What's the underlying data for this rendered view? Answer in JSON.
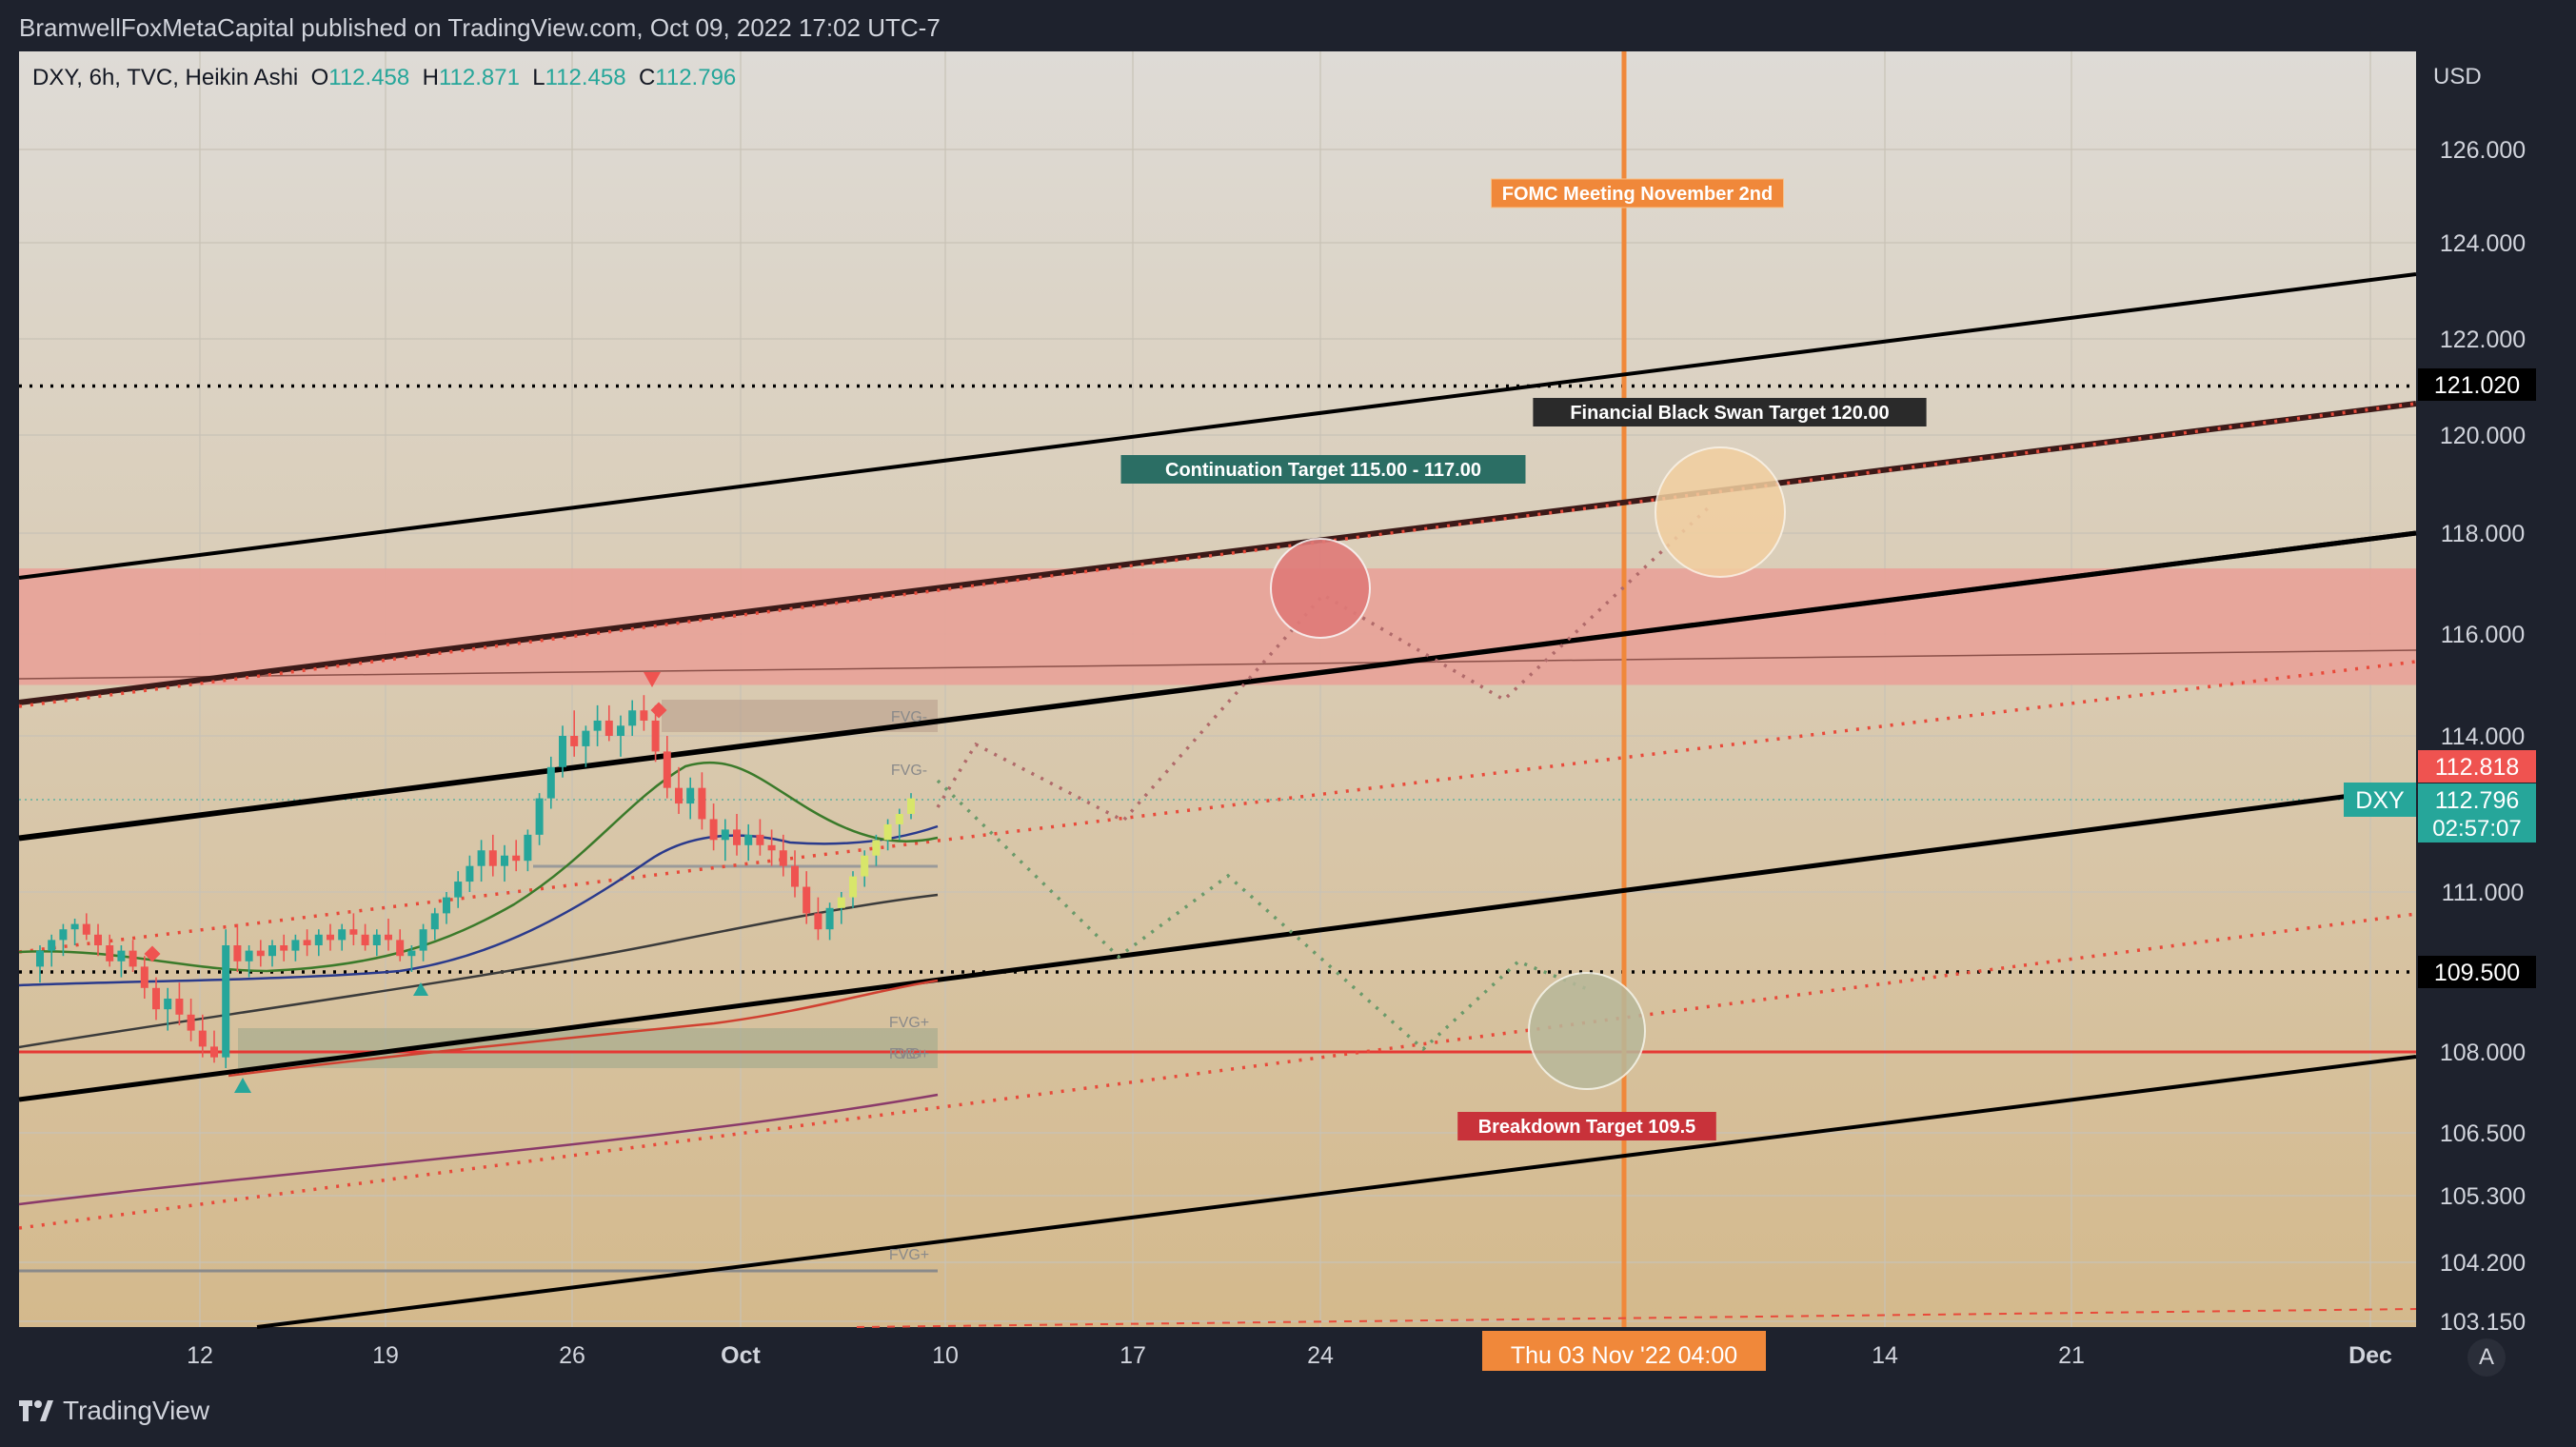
{
  "header": {
    "attribution": "BramwellFoxMetaCapital published on TradingView.com, Oct 09, 2022 17:02 UTC-7"
  },
  "legend": {
    "symbol_info": "DXY, 6h, TVC, Heikin Ashi",
    "o_label": "O",
    "o_value": "112.458",
    "h_label": "H",
    "h_value": "112.871",
    "l_label": "L",
    "l_value": "112.458",
    "c_label": "C",
    "c_value": "112.796"
  },
  "footer": {
    "brand": "TradingView",
    "auto_scale": "A"
  },
  "colors": {
    "background_top": "#dedbd6",
    "background_bottom": "#d4b98c",
    "resistance_zone": "#e8a097",
    "bull_candle": "#26a69a",
    "bear_candle": "#ef5350",
    "fomc_line": "#f0883a"
  },
  "chart_data": {
    "type": "candlestick",
    "symbol": "DXY",
    "timeframe": "6h",
    "source": "TVC",
    "style": "Heikin Ashi",
    "currency_label": "USD",
    "y_ticks": [
      "126.000",
      "124.000",
      "122.000",
      "120.000",
      "118.000",
      "116.000",
      "114.000",
      "111.000",
      "108.000",
      "106.500",
      "105.300",
      "104.200",
      "103.150"
    ],
    "x_ticks": [
      "12",
      "19",
      "26",
      "Oct",
      "10",
      "17",
      "24",
      "14",
      "21",
      "Dec"
    ],
    "price_badges": [
      {
        "label": "121.020",
        "style": "black"
      },
      {
        "label": "112.818",
        "style": "red"
      },
      {
        "label": "112.796",
        "sub": "02:57:07",
        "style": "teal"
      },
      {
        "label": "109.500",
        "style": "black"
      }
    ],
    "symbol_badge": "DXY",
    "crosshair_label": "Thu 03 Nov '22  04:00",
    "annotations": [
      {
        "text": "FOMC Meeting November 2nd",
        "style": "orange"
      },
      {
        "text": "Financial Black Swan Target 120.00",
        "style": "dark"
      },
      {
        "text": "Continuation Target 115.00 - 117.00",
        "style": "teal"
      },
      {
        "text": "Breakdown Target 109.5",
        "style": "red"
      }
    ],
    "fvg_labels": [
      "FVG-",
      "FVG-",
      "FVG+",
      "FVG+",
      "OB+",
      "FVG+"
    ],
    "horizontal_levels": [
      121.02,
      109.5
    ],
    "resistance_zone": [
      115.0,
      117.3
    ],
    "support_line": 108.0,
    "candles": [
      {
        "o": 109.6,
        "h": 110.0,
        "l": 109.3,
        "c": 109.9
      },
      {
        "o": 109.9,
        "h": 110.2,
        "l": 109.6,
        "c": 110.1
      },
      {
        "o": 110.1,
        "h": 110.4,
        "l": 109.8,
        "c": 110.3
      },
      {
        "o": 110.3,
        "h": 110.5,
        "l": 110.0,
        "c": 110.4
      },
      {
        "o": 110.4,
        "h": 110.6,
        "l": 110.1,
        "c": 110.2
      },
      {
        "o": 110.2,
        "h": 110.4,
        "l": 109.8,
        "c": 110.0
      },
      {
        "o": 110.0,
        "h": 110.2,
        "l": 109.6,
        "c": 109.7
      },
      {
        "o": 109.7,
        "h": 110.0,
        "l": 109.4,
        "c": 109.9
      },
      {
        "o": 109.9,
        "h": 110.1,
        "l": 109.5,
        "c": 109.6
      },
      {
        "o": 109.6,
        "h": 109.8,
        "l": 109.0,
        "c": 109.2
      },
      {
        "o": 109.2,
        "h": 109.4,
        "l": 108.6,
        "c": 108.8
      },
      {
        "o": 108.8,
        "h": 109.2,
        "l": 108.4,
        "c": 109.0
      },
      {
        "o": 109.0,
        "h": 109.3,
        "l": 108.5,
        "c": 108.7
      },
      {
        "o": 108.7,
        "h": 109.0,
        "l": 108.2,
        "c": 108.4
      },
      {
        "o": 108.4,
        "h": 108.7,
        "l": 107.9,
        "c": 108.1
      },
      {
        "o": 108.1,
        "h": 108.4,
        "l": 107.8,
        "c": 107.9
      },
      {
        "o": 107.9,
        "h": 110.3,
        "l": 107.7,
        "c": 110.0
      },
      {
        "o": 110.0,
        "h": 110.4,
        "l": 109.5,
        "c": 109.7
      },
      {
        "o": 109.7,
        "h": 110.0,
        "l": 109.4,
        "c": 109.9
      },
      {
        "o": 109.9,
        "h": 110.1,
        "l": 109.6,
        "c": 109.8
      },
      {
        "o": 109.8,
        "h": 110.1,
        "l": 109.6,
        "c": 110.0
      },
      {
        "o": 110.0,
        "h": 110.2,
        "l": 109.7,
        "c": 109.9
      },
      {
        "o": 109.9,
        "h": 110.2,
        "l": 109.7,
        "c": 110.1
      },
      {
        "o": 110.1,
        "h": 110.3,
        "l": 109.8,
        "c": 110.0
      },
      {
        "o": 110.0,
        "h": 110.3,
        "l": 109.8,
        "c": 110.2
      },
      {
        "o": 110.2,
        "h": 110.4,
        "l": 109.9,
        "c": 110.1
      },
      {
        "o": 110.1,
        "h": 110.4,
        "l": 109.9,
        "c": 110.3
      },
      {
        "o": 110.3,
        "h": 110.6,
        "l": 110.0,
        "c": 110.2
      },
      {
        "o": 110.2,
        "h": 110.4,
        "l": 109.9,
        "c": 110.0
      },
      {
        "o": 110.0,
        "h": 110.3,
        "l": 109.8,
        "c": 110.2
      },
      {
        "o": 110.2,
        "h": 110.5,
        "l": 109.9,
        "c": 110.1
      },
      {
        "o": 110.1,
        "h": 110.3,
        "l": 109.7,
        "c": 109.8
      },
      {
        "o": 109.8,
        "h": 110.0,
        "l": 109.5,
        "c": 109.9
      },
      {
        "o": 109.9,
        "h": 110.4,
        "l": 109.7,
        "c": 110.3
      },
      {
        "o": 110.3,
        "h": 110.7,
        "l": 110.1,
        "c": 110.6
      },
      {
        "o": 110.6,
        "h": 111.0,
        "l": 110.4,
        "c": 110.9
      },
      {
        "o": 110.9,
        "h": 111.4,
        "l": 110.7,
        "c": 111.2
      },
      {
        "o": 111.2,
        "h": 111.7,
        "l": 111.0,
        "c": 111.5
      },
      {
        "o": 111.5,
        "h": 112.0,
        "l": 111.2,
        "c": 111.8
      },
      {
        "o": 111.8,
        "h": 112.1,
        "l": 111.3,
        "c": 111.5
      },
      {
        "o": 111.5,
        "h": 111.9,
        "l": 111.2,
        "c": 111.7
      },
      {
        "o": 111.7,
        "h": 112.0,
        "l": 111.4,
        "c": 111.6
      },
      {
        "o": 111.6,
        "h": 112.2,
        "l": 111.4,
        "c": 112.1
      },
      {
        "o": 112.1,
        "h": 112.9,
        "l": 111.9,
        "c": 112.8
      },
      {
        "o": 112.8,
        "h": 113.6,
        "l": 112.6,
        "c": 113.4
      },
      {
        "o": 113.4,
        "h": 114.2,
        "l": 113.2,
        "c": 114.0
      },
      {
        "o": 114.0,
        "h": 114.5,
        "l": 113.6,
        "c": 113.8
      },
      {
        "o": 113.8,
        "h": 114.2,
        "l": 113.4,
        "c": 114.1
      },
      {
        "o": 114.1,
        "h": 114.6,
        "l": 113.8,
        "c": 114.3
      },
      {
        "o": 114.3,
        "h": 114.6,
        "l": 113.9,
        "c": 114.0
      },
      {
        "o": 114.0,
        "h": 114.4,
        "l": 113.6,
        "c": 114.2
      },
      {
        "o": 114.2,
        "h": 114.7,
        "l": 114.0,
        "c": 114.5
      },
      {
        "o": 114.5,
        "h": 114.8,
        "l": 114.1,
        "c": 114.3
      },
      {
        "o": 114.3,
        "h": 114.6,
        "l": 113.5,
        "c": 113.7
      },
      {
        "o": 113.7,
        "h": 114.0,
        "l": 112.8,
        "c": 113.0
      },
      {
        "o": 113.0,
        "h": 113.4,
        "l": 112.5,
        "c": 112.7
      },
      {
        "o": 112.7,
        "h": 113.2,
        "l": 112.4,
        "c": 113.0
      },
      {
        "o": 113.0,
        "h": 113.3,
        "l": 112.2,
        "c": 112.4
      },
      {
        "o": 112.4,
        "h": 112.7,
        "l": 111.8,
        "c": 112.0
      },
      {
        "o": 112.0,
        "h": 112.4,
        "l": 111.6,
        "c": 112.2
      },
      {
        "o": 112.2,
        "h": 112.5,
        "l": 111.7,
        "c": 111.9
      },
      {
        "o": 111.9,
        "h": 112.3,
        "l": 111.6,
        "c": 112.1
      },
      {
        "o": 112.1,
        "h": 112.4,
        "l": 111.7,
        "c": 111.9
      },
      {
        "o": 111.9,
        "h": 112.2,
        "l": 111.5,
        "c": 111.8
      },
      {
        "o": 111.8,
        "h": 112.1,
        "l": 111.3,
        "c": 111.5
      },
      {
        "o": 111.5,
        "h": 111.8,
        "l": 110.9,
        "c": 111.1
      },
      {
        "o": 111.1,
        "h": 111.4,
        "l": 110.4,
        "c": 110.6
      },
      {
        "o": 110.6,
        "h": 110.9,
        "l": 110.1,
        "c": 110.3
      },
      {
        "o": 110.3,
        "h": 110.8,
        "l": 110.1,
        "c": 110.7
      },
      {
        "o": 110.7,
        "h": 111.0,
        "l": 110.4,
        "c": 110.9
      },
      {
        "o": 110.9,
        "h": 111.4,
        "l": 110.7,
        "c": 111.3
      },
      {
        "o": 111.3,
        "h": 111.8,
        "l": 111.1,
        "c": 111.7
      },
      {
        "o": 111.7,
        "h": 112.1,
        "l": 111.5,
        "c": 112.0
      },
      {
        "o": 112.0,
        "h": 112.4,
        "l": 111.8,
        "c": 112.3
      },
      {
        "o": 112.3,
        "h": 112.6,
        "l": 112.0,
        "c": 112.5
      },
      {
        "o": 112.5,
        "h": 112.9,
        "l": 112.4,
        "c": 112.8
      }
    ]
  }
}
